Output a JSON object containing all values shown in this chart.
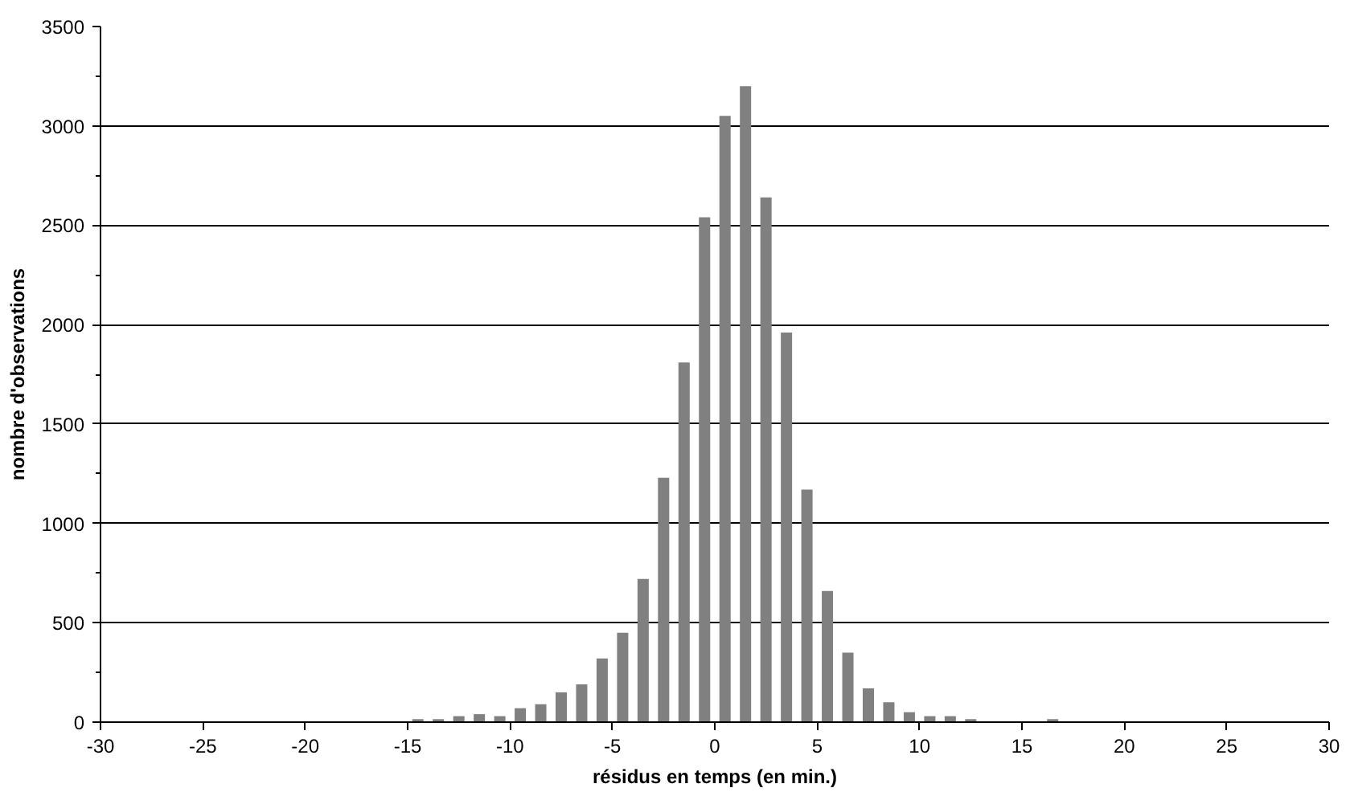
{
  "chart_data": {
    "type": "histogram",
    "xlabel": "résidus en temps (en min.)",
    "ylabel": "nombre d'observations",
    "color": "#808080",
    "bins": [
      -30,
      -29,
      -28,
      -27,
      -26,
      -25,
      -24,
      -23,
      -22,
      -21,
      -20,
      -19,
      -18,
      -17,
      -16,
      -15,
      -14,
      -13,
      -12,
      -11,
      -10,
      -9,
      -8,
      -7,
      -6,
      -5,
      -4,
      -3,
      -2,
      -1,
      0,
      1,
      2,
      3,
      4,
      5,
      6,
      7,
      8,
      9,
      10,
      11,
      12,
      13,
      14,
      15,
      16,
      17,
      18,
      19,
      20,
      21,
      22,
      23,
      24,
      25,
      26,
      27,
      28,
      29,
      30
    ],
    "values": [
      0,
      0,
      0,
      0,
      0,
      0,
      0,
      0,
      0,
      0,
      0,
      0,
      0,
      0,
      0,
      15,
      15,
      30,
      40,
      30,
      70,
      90,
      150,
      190,
      320,
      450,
      720,
      1230,
      1810,
      2540,
      3050,
      3200,
      2640,
      1960,
      1170,
      660,
      350,
      170,
      100,
      50,
      30,
      30,
      15,
      0,
      0,
      0,
      15,
      0,
      0,
      0,
      0,
      0,
      0,
      0,
      0,
      0,
      0,
      0,
      0,
      0
    ],
    "xlim": [
      -30,
      30
    ],
    "xticks": [
      -30,
      -25,
      -20,
      -15,
      -10,
      -5,
      0,
      5,
      10,
      15,
      20,
      25,
      30
    ],
    "ylim": [
      0,
      3500
    ],
    "yticks": [
      0,
      500,
      1000,
      1500,
      2000,
      2500,
      3000,
      3500
    ],
    "grid": "y"
  }
}
